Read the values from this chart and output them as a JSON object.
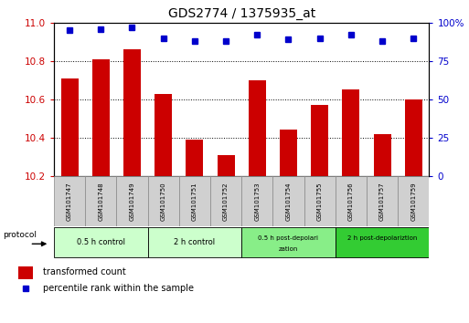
{
  "title": "GDS2774 / 1375935_at",
  "samples": [
    "GSM101747",
    "GSM101748",
    "GSM101749",
    "GSM101750",
    "GSM101751",
    "GSM101752",
    "GSM101753",
    "GSM101754",
    "GSM101755",
    "GSM101756",
    "GSM101757",
    "GSM101759"
  ],
  "red_values": [
    10.71,
    10.81,
    10.86,
    10.63,
    10.39,
    10.31,
    10.7,
    10.44,
    10.57,
    10.65,
    10.42,
    10.6
  ],
  "blue_values": [
    95,
    96,
    97,
    90,
    88,
    88,
    92,
    89,
    90,
    92,
    88,
    90
  ],
  "ylim_left": [
    10.2,
    11.0
  ],
  "ylim_right": [
    0,
    100
  ],
  "yticks_left": [
    10.2,
    10.4,
    10.6,
    10.8,
    11.0
  ],
  "yticks_right": [
    0,
    25,
    50,
    75,
    100
  ],
  "bar_color": "#CC0000",
  "dot_color": "#0000CC",
  "groups": [
    {
      "label": "0.5 h control",
      "start": 0,
      "end": 3,
      "color": "#ccffcc"
    },
    {
      "label": "2 h control",
      "start": 3,
      "end": 6,
      "color": "#ccffcc"
    },
    {
      "label": "0.5 h post-depolarization",
      "start": 6,
      "end": 9,
      "color": "#88ee88"
    },
    {
      "label": "2 h post-depolariztion",
      "start": 9,
      "end": 12,
      "color": "#33cc33"
    }
  ],
  "protocol_label": "protocol",
  "legend_red_label": "transformed count",
  "legend_blue_label": "percentile rank within the sample",
  "tick_label_color_left": "#CC0000",
  "tick_label_color_right": "#0000CC",
  "sample_box_color": "#d0d0d0",
  "sample_box_edge": "#888888",
  "title_fontsize": 10
}
